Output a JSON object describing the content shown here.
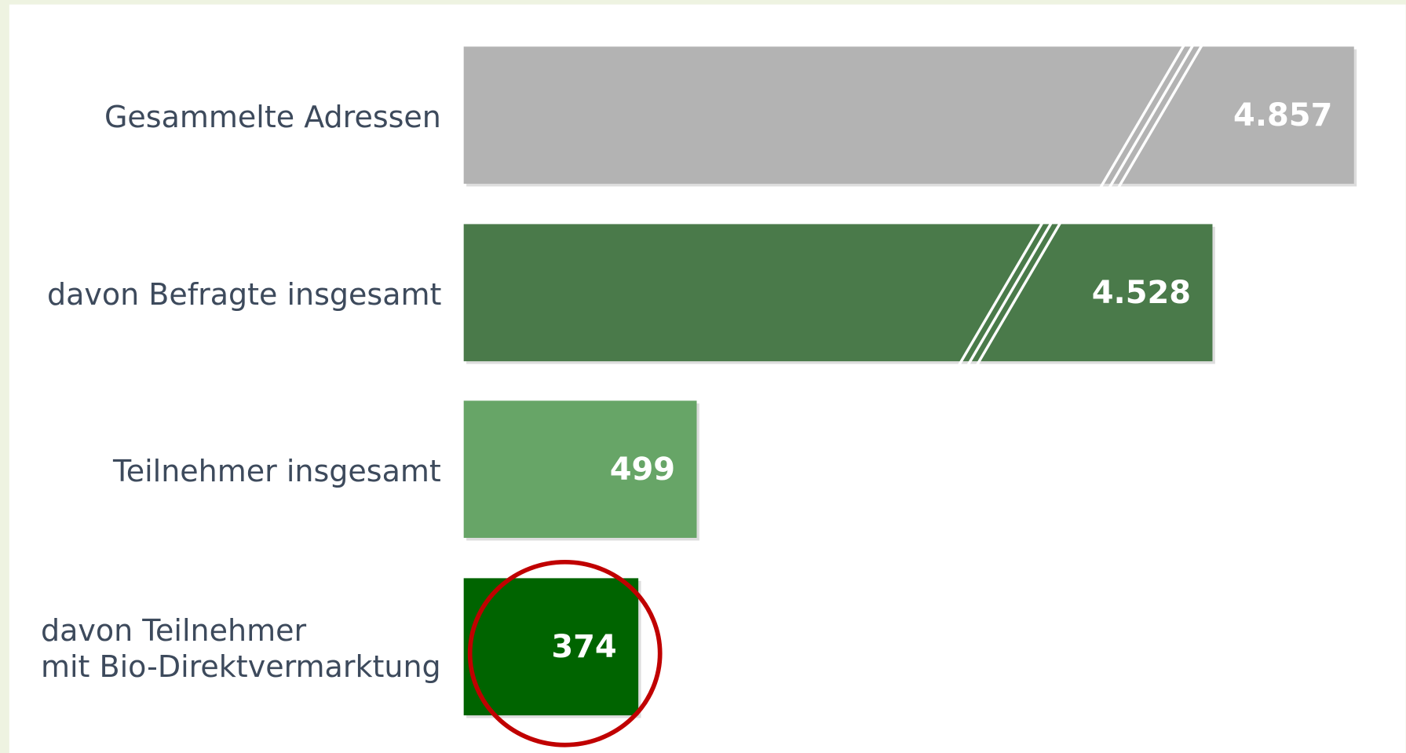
{
  "chart_data": {
    "type": "bar",
    "categories": [
      "Gesammelte Adressen",
      "davon Befragte insgesamt",
      "Teilnehmer insgesamt",
      "davon Teilnehmer\nmit Bio-Direktvermarktung"
    ],
    "values": [
      4857,
      4528,
      499,
      374
    ],
    "value_labels": [
      "4.857",
      "4.528",
      "499",
      "374"
    ],
    "colors": [
      "#b3b3b3",
      "#4a7a4a",
      "#67a567",
      "#006400"
    ]
  }
}
